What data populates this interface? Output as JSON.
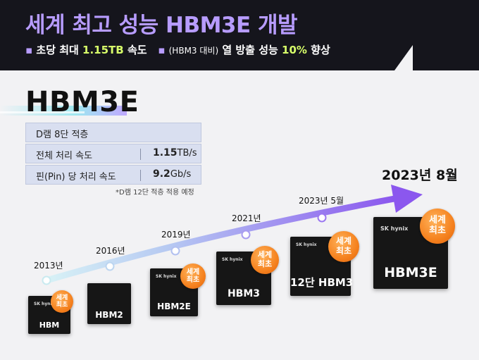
{
  "header": {
    "title": "세계 최고 성능 HBM3E 개발",
    "sub1_prefix": "초당 최대 ",
    "sub1_value": "1.15TB",
    "sub1_suffix": " 속도",
    "sub2_paren": "(HBM3 대비)",
    "sub2_mid": " 열 방출 성능 ",
    "sub2_value": "10%",
    "sub2_suffix": " 향상",
    "accent_color": "#b79cff",
    "highlight_color": "#d8ff6a"
  },
  "product": {
    "name": "HBM3E",
    "specs": [
      {
        "label": "D램 8단 적층",
        "value_bold": "",
        "value_unit": ""
      },
      {
        "label": "전체 처리 속도",
        "value_bold": "1.15",
        "value_unit": "TB/s"
      },
      {
        "label": "핀(Pin) 당 처리 속도",
        "value_bold": "9.2",
        "value_unit": "Gb/s"
      }
    ],
    "note": "*D램 12단 적층 적용 예정"
  },
  "timeline": {
    "latest_date": "2023년 8월",
    "milestones": [
      {
        "year": "2013년",
        "chip": "HBM",
        "badge": "세계\n최초"
      },
      {
        "year": "2016년",
        "chip": "HBM2",
        "badge": ""
      },
      {
        "year": "2019년",
        "chip": "HBM2E",
        "badge": "세계\n최초"
      },
      {
        "year": "2021년",
        "chip": "HBM3",
        "badge": "세계\n최초"
      },
      {
        "year": "2023년 5월",
        "chip": "12단 HBM3",
        "badge": "세계\n최초"
      },
      {
        "year": "",
        "chip": "HBM3E",
        "badge": "세계\n최초"
      }
    ],
    "logo_text": "SK hynix"
  }
}
